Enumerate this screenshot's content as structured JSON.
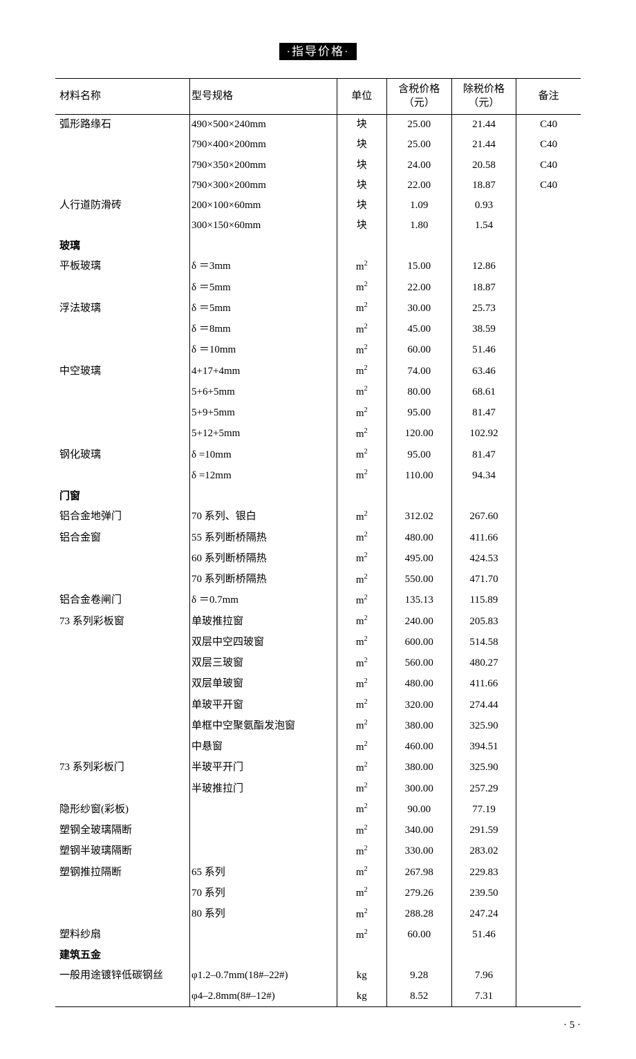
{
  "banner": "·指导价格·",
  "page_number": "·  5  ·",
  "columns": {
    "name": "材料名称",
    "spec": "型号规格",
    "unit": "单位",
    "price_tax": "含税价格\n（元）",
    "price_notax": "除税价格\n（元）",
    "note": "备注"
  },
  "unit_labels": {
    "kuai": "块",
    "m2": "m²",
    "kg": "kg"
  },
  "rows": [
    {
      "name": "弧形路缘石",
      "spec": "490×500×240mm",
      "unit": "kuai",
      "p1": "25.00",
      "p2": "21.44",
      "note": "C40"
    },
    {
      "name": "",
      "spec": "790×400×200mm",
      "unit": "kuai",
      "p1": "25.00",
      "p2": "21.44",
      "note": "C40"
    },
    {
      "name": "",
      "spec": "790×350×200mm",
      "unit": "kuai",
      "p1": "24.00",
      "p2": "20.58",
      "note": "C40"
    },
    {
      "name": "",
      "spec": "790×300×200mm",
      "unit": "kuai",
      "p1": "22.00",
      "p2": "18.87",
      "note": "C40"
    },
    {
      "name": "人行道防滑砖",
      "spec": "200×100×60mm",
      "unit": "kuai",
      "p1": "1.09",
      "p2": "0.93",
      "note": ""
    },
    {
      "name": "",
      "spec": "300×150×60mm",
      "unit": "kuai",
      "p1": "1.80",
      "p2": "1.54",
      "note": ""
    },
    {
      "section": true,
      "name": "玻璃"
    },
    {
      "name": "平板玻璃",
      "spec": "δ ＝3mm",
      "unit": "m2",
      "p1": "15.00",
      "p2": "12.86",
      "note": ""
    },
    {
      "name": "",
      "spec": "δ ＝5mm",
      "unit": "m2",
      "p1": "22.00",
      "p2": "18.87",
      "note": ""
    },
    {
      "name": "浮法玻璃",
      "spec": "δ ＝5mm",
      "unit": "m2",
      "p1": "30.00",
      "p2": "25.73",
      "note": ""
    },
    {
      "name": "",
      "spec": "δ ＝8mm",
      "unit": "m2",
      "p1": "45.00",
      "p2": "38.59",
      "note": ""
    },
    {
      "name": "",
      "spec": "δ ＝10mm",
      "unit": "m2",
      "p1": "60.00",
      "p2": "51.46",
      "note": ""
    },
    {
      "name": "中空玻璃",
      "spec": "4+17+4mm",
      "unit": "m2",
      "p1": "74.00",
      "p2": "63.46",
      "note": ""
    },
    {
      "name": "",
      "spec": "5+6+5mm",
      "unit": "m2",
      "p1": "80.00",
      "p2": "68.61",
      "note": ""
    },
    {
      "name": "",
      "spec": "5+9+5mm",
      "unit": "m2",
      "p1": "95.00",
      "p2": "81.47",
      "note": ""
    },
    {
      "name": "",
      "spec": "5+12+5mm",
      "unit": "m2",
      "p1": "120.00",
      "p2": "102.92",
      "note": ""
    },
    {
      "name": "钢化玻璃",
      "spec": "δ =10mm",
      "unit": "m2",
      "p1": "95.00",
      "p2": "81.47",
      "note": ""
    },
    {
      "name": "",
      "spec": "δ =12mm",
      "unit": "m2",
      "p1": "110.00",
      "p2": "94.34",
      "note": ""
    },
    {
      "section": true,
      "name": "门窗"
    },
    {
      "name": "铝合金地弹门",
      "spec": "70 系列、银白",
      "unit": "m2",
      "p1": "312.02",
      "p2": "267.60",
      "note": ""
    },
    {
      "name": "铝合金窗",
      "spec": "55 系列断桥隔热",
      "unit": "m2",
      "p1": "480.00",
      "p2": "411.66",
      "note": ""
    },
    {
      "name": "",
      "spec": "60 系列断桥隔热",
      "unit": "m2",
      "p1": "495.00",
      "p2": "424.53",
      "note": ""
    },
    {
      "name": "",
      "spec": "70 系列断桥隔热",
      "unit": "m2",
      "p1": "550.00",
      "p2": "471.70",
      "note": ""
    },
    {
      "name": "铝合金卷闸门",
      "spec": "δ ＝0.7mm",
      "unit": "m2",
      "p1": "135.13",
      "p2": "115.89",
      "note": ""
    },
    {
      "name": "73 系列彩板窗",
      "spec": "单玻推拉窗",
      "unit": "m2",
      "p1": "240.00",
      "p2": "205.83",
      "note": ""
    },
    {
      "name": "",
      "spec": "双层中空四玻窗",
      "unit": "m2",
      "p1": "600.00",
      "p2": "514.58",
      "note": ""
    },
    {
      "name": "",
      "spec": "双层三玻窗",
      "unit": "m2",
      "p1": "560.00",
      "p2": "480.27",
      "note": ""
    },
    {
      "name": "",
      "spec": "双层单玻窗",
      "unit": "m2",
      "p1": "480.00",
      "p2": "411.66",
      "note": ""
    },
    {
      "name": "",
      "spec": "单玻平开窗",
      "unit": "m2",
      "p1": "320.00",
      "p2": "274.44",
      "note": ""
    },
    {
      "name": "",
      "spec": "单框中空聚氨酯发泡窗",
      "unit": "m2",
      "p1": "380.00",
      "p2": "325.90",
      "note": ""
    },
    {
      "name": "",
      "spec": "中悬窗",
      "unit": "m2",
      "p1": "460.00",
      "p2": "394.51",
      "note": ""
    },
    {
      "name": "73 系列彩板门",
      "spec": "半玻平开门",
      "unit": "m2",
      "p1": "380.00",
      "p2": "325.90",
      "note": ""
    },
    {
      "name": "",
      "spec": "半玻推拉门",
      "unit": "m2",
      "p1": "300.00",
      "p2": "257.29",
      "note": ""
    },
    {
      "name": "隐形纱窗(彩板)",
      "spec": "",
      "unit": "m2",
      "p1": "90.00",
      "p2": "77.19",
      "note": ""
    },
    {
      "name": "塑钢全玻璃隔断",
      "spec": "",
      "unit": "m2",
      "p1": "340.00",
      "p2": "291.59",
      "note": ""
    },
    {
      "name": "塑钢半玻璃隔断",
      "spec": "",
      "unit": "m2",
      "p1": "330.00",
      "p2": "283.02",
      "note": ""
    },
    {
      "name": "塑钢推拉隔断",
      "spec": "65 系列",
      "unit": "m2",
      "p1": "267.98",
      "p2": "229.83",
      "note": ""
    },
    {
      "name": "",
      "spec": "70 系列",
      "unit": "m2",
      "p1": "279.26",
      "p2": "239.50",
      "note": ""
    },
    {
      "name": "",
      "spec": "80 系列",
      "unit": "m2",
      "p1": "288.28",
      "p2": "247.24",
      "note": ""
    },
    {
      "name": "塑料纱扇",
      "spec": "",
      "unit": "m2",
      "p1": "60.00",
      "p2": "51.46",
      "note": ""
    },
    {
      "section": true,
      "name": "建筑五金"
    },
    {
      "name": "一般用途镀锌低碳钢丝",
      "spec": "φ1.2–0.7mm(18#–22#)",
      "unit": "kg",
      "p1": "9.28",
      "p2": "7.96",
      "note": ""
    },
    {
      "name": "",
      "spec": "φ4–2.8mm(8#–12#)",
      "unit": "kg",
      "p1": "8.52",
      "p2": "7.31",
      "note": ""
    }
  ]
}
